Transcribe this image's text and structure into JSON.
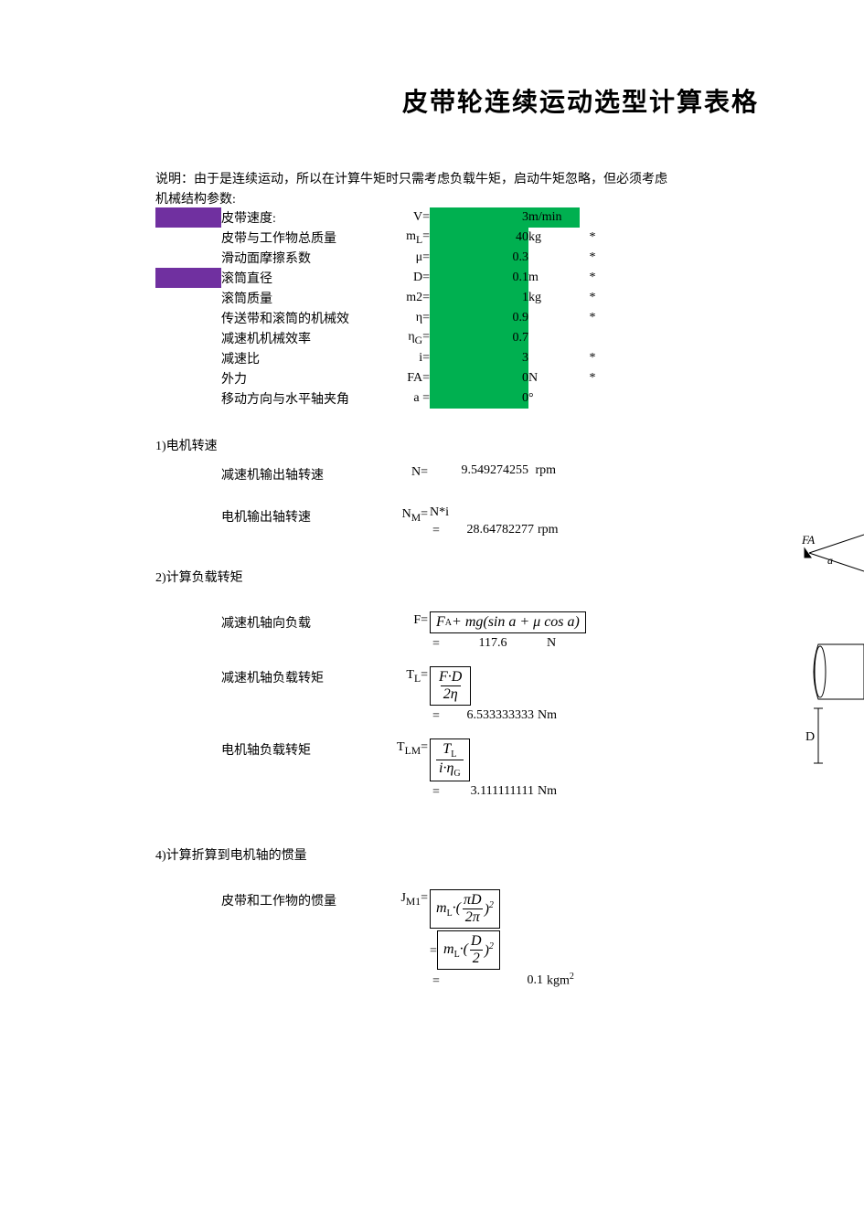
{
  "title": "皮带轮连续运动选型计算表格",
  "description": "说明：由于是连续运动，所以在计算牛矩时只需考虑负载牛矩，启动牛矩忽略，但必须考虑",
  "sub_heading": "机械结构参数:",
  "params": [
    {
      "purple": true,
      "label": "皮带速度:",
      "sym": "V=",
      "val": "3",
      "unit": "m/min",
      "ast": "",
      "green_val": true,
      "green_unit": true
    },
    {
      "purple": false,
      "label": "皮带与工作物总质量",
      "sym": "m<sub>L</sub>=",
      "val": "40",
      "unit": "kg",
      "ast": "*",
      "green_val": true,
      "green_unit": false
    },
    {
      "purple": false,
      "label": "滑动面摩擦系数",
      "sym": "μ=",
      "val": "0.3",
      "unit": "",
      "ast": "*",
      "green_val": true,
      "green_unit": false
    },
    {
      "purple": true,
      "label": "滚筒直径",
      "sym": "D=",
      "val": "0.1",
      "unit": "m",
      "ast": "*",
      "green_val": true,
      "green_unit": false
    },
    {
      "purple": false,
      "label": "滚筒质量",
      "sym": "m2=",
      "val": "1",
      "unit": "kg",
      "ast": "*",
      "green_val": true,
      "green_unit": false
    },
    {
      "purple": false,
      "label": "传送带和滚筒的机械效",
      "sym": "η=",
      "val": "0.9",
      "unit": "",
      "ast": "*",
      "green_val": true,
      "green_unit": false
    },
    {
      "purple": false,
      "label": "减速机机械效率",
      "sym": "η<sub>G</sub>=",
      "val": "0.7",
      "unit": "",
      "ast": "",
      "green_val": true,
      "green_unit": false
    },
    {
      "purple": false,
      "label": "减速比",
      "sym": "i=",
      "val": "3",
      "unit": "",
      "ast": "*",
      "green_val": true,
      "green_unit": false
    },
    {
      "purple": false,
      "label": "外力",
      "sym": "FA=",
      "val": "0",
      "unit": "N",
      "ast": "*",
      "green_val": true,
      "green_unit": false
    },
    {
      "purple": false,
      "label": "移动方向与水平轴夹角",
      "sym": "a =",
      "val": "0",
      "unit": "°",
      "ast": "",
      "green_val": true,
      "green_unit": false
    }
  ],
  "sec1": {
    "heading": "1)电机转速",
    "r1": {
      "label": "减速机输出轴转速",
      "sym": "N=",
      "val": "9.549274255",
      "unit": "rpm"
    },
    "r2": {
      "label": "电机输出轴转速",
      "sym": "N<sub>M</sub>=",
      "expr": "N*i",
      "val": "28.64782277",
      "unit": "rpm"
    }
  },
  "sec2": {
    "heading": "2)计算负载转矩",
    "r1": {
      "label": "减速机轴向负载",
      "sym": "F=",
      "formula": "F<sub class='sub'>A</sub> + mg(sin a + μ cos a)",
      "val": "117.6",
      "unit": "N"
    },
    "r2": {
      "label": "减速机轴负载转矩",
      "sym": "T<sub>L</sub>=",
      "num": "F·D",
      "den": "2η",
      "val": "6.533333333",
      "unit": "Nm"
    },
    "r3": {
      "label": "电机轴负载转矩",
      "sym": "T<sub>LM</sub>=",
      "num": "T<sub class='sub'>L</sub>",
      "den": "i·η<sub class='sub'>G</sub>",
      "val": "3.111111111",
      "unit": "Nm"
    }
  },
  "sec4": {
    "heading": "4)计算折算到电机轴的惯量",
    "r1": {
      "label": "皮带和工作物的惯量",
      "sym": "J<sub>M1</sub>=",
      "line1_pre": "m<sub class='sub'>L</sub>·(",
      "line1_num": "πD",
      "line1_den": "2π",
      "line1_post": ")<span class='sup'>2</span>",
      "line2_pre": "m<sub class='sub'>L</sub>·(",
      "line2_num": "D",
      "line2_den": "2",
      "line2_post": ")<span class='sup'>2</span>",
      "val": "0.1",
      "unit": "kgm<span class='sup'>2</span>"
    }
  },
  "diagram": {
    "labels": {
      "fa": "FA",
      "a": "a",
      "d": "D"
    }
  },
  "colors": {
    "purple": "#7030a0",
    "green": "#00b050",
    "text": "#000000",
    "bg": "#ffffff"
  }
}
